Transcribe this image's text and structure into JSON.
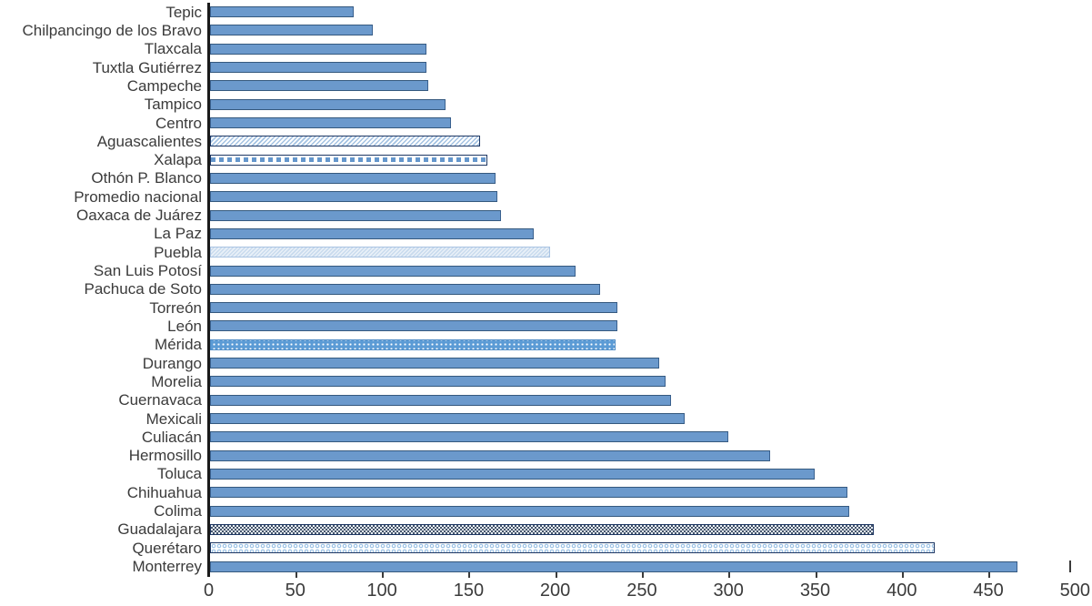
{
  "chart_data": {
    "type": "bar",
    "orientation": "horizontal",
    "title": "",
    "xlabel": "",
    "ylabel": "",
    "xlim": [
      0,
      500
    ],
    "x_ticks": [
      0,
      50,
      100,
      150,
      200,
      250,
      300,
      350,
      400,
      450,
      500
    ],
    "grid": false,
    "legend_position": "none",
    "categories": [
      "Tepic",
      "Chilpancingo de los Bravo",
      "Tlaxcala",
      "Tuxtla Gutiérrez",
      "Campeche",
      "Tampico",
      "Centro",
      "Aguascalientes",
      "Xalapa",
      "Othón P. Blanco",
      "Promedio nacional",
      "Oaxaca de Juárez",
      "La Paz",
      "Puebla",
      "San Luis Potosí",
      "Pachuca de Soto",
      "Torreón",
      "León",
      "Mérida",
      "Durango",
      "Morelia",
      "Cuernavaca",
      "Mexicali",
      "Culiacán",
      "Hermosillo",
      "Toluca",
      "Chihuahua",
      "Colima",
      "Guadalajara",
      "Querétaro",
      "Monterrey"
    ],
    "values": [
      83,
      94,
      125,
      125,
      126,
      136,
      139,
      156,
      160,
      165,
      166,
      168,
      187,
      196,
      211,
      225,
      235,
      235,
      234,
      259,
      263,
      266,
      274,
      299,
      323,
      349,
      368,
      369,
      383,
      418,
      466
    ],
    "bar_styles": [
      "solid",
      "solid",
      "solid",
      "solid",
      "solid",
      "solid",
      "solid",
      "diagonal",
      "squares",
      "solid",
      "solid",
      "solid",
      "solid",
      "light",
      "solid",
      "solid",
      "solid",
      "solid",
      "dots",
      "solid",
      "solid",
      "solid",
      "solid",
      "solid",
      "solid",
      "solid",
      "solid",
      "solid",
      "checker",
      "rings",
      "solid"
    ],
    "colors": {
      "bar_fill": "#6b99cc",
      "bar_border": "#35597e",
      "pattern_dark": "#1f3864",
      "pattern_light_blue": "#a3c2e2",
      "light_bar_fill": "#c9dbee",
      "dots_bar_fill": "#5b9bd5",
      "checker_dark": "#44546a",
      "axis_line": "#1a1a1a",
      "text": "#3b3b3b"
    },
    "end_marker": {
      "label": "I",
      "at_value": 498,
      "row": "Monterrey"
    }
  }
}
